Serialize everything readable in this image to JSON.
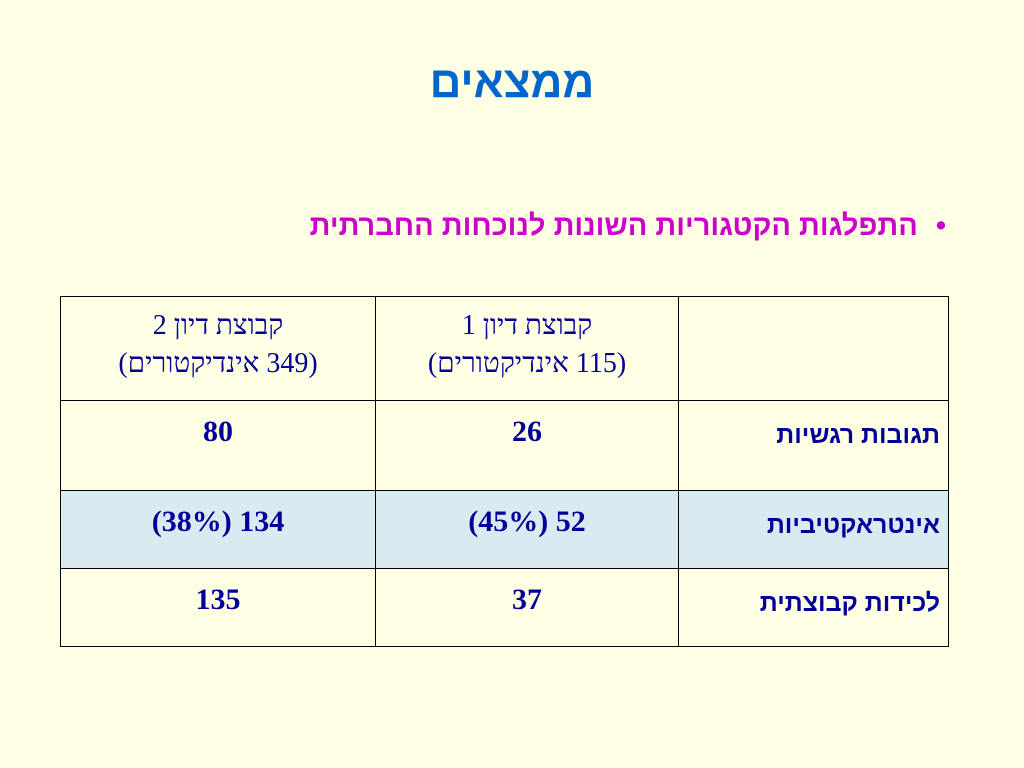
{
  "title": "ממצאים",
  "bullet": "התפלגות הקטגוריות השונות לנוכחות החברתית",
  "table": {
    "header": [
      [
        "",
        ""
      ],
      [
        "קבוצת דיון 1",
        "(115 אינדיקטורים)"
      ],
      [
        "קבוצת דיון 2",
        "(349 אינדיקטורים)"
      ]
    ],
    "rows": [
      [
        "תגובות רגשיות",
        26,
        80
      ],
      [
        "אינטראקטיביות",
        "52 (45%)",
        "134 (38%)"
      ],
      [
        "לכידות קבוצתית",
        37,
        135
      ]
    ]
  }
}
